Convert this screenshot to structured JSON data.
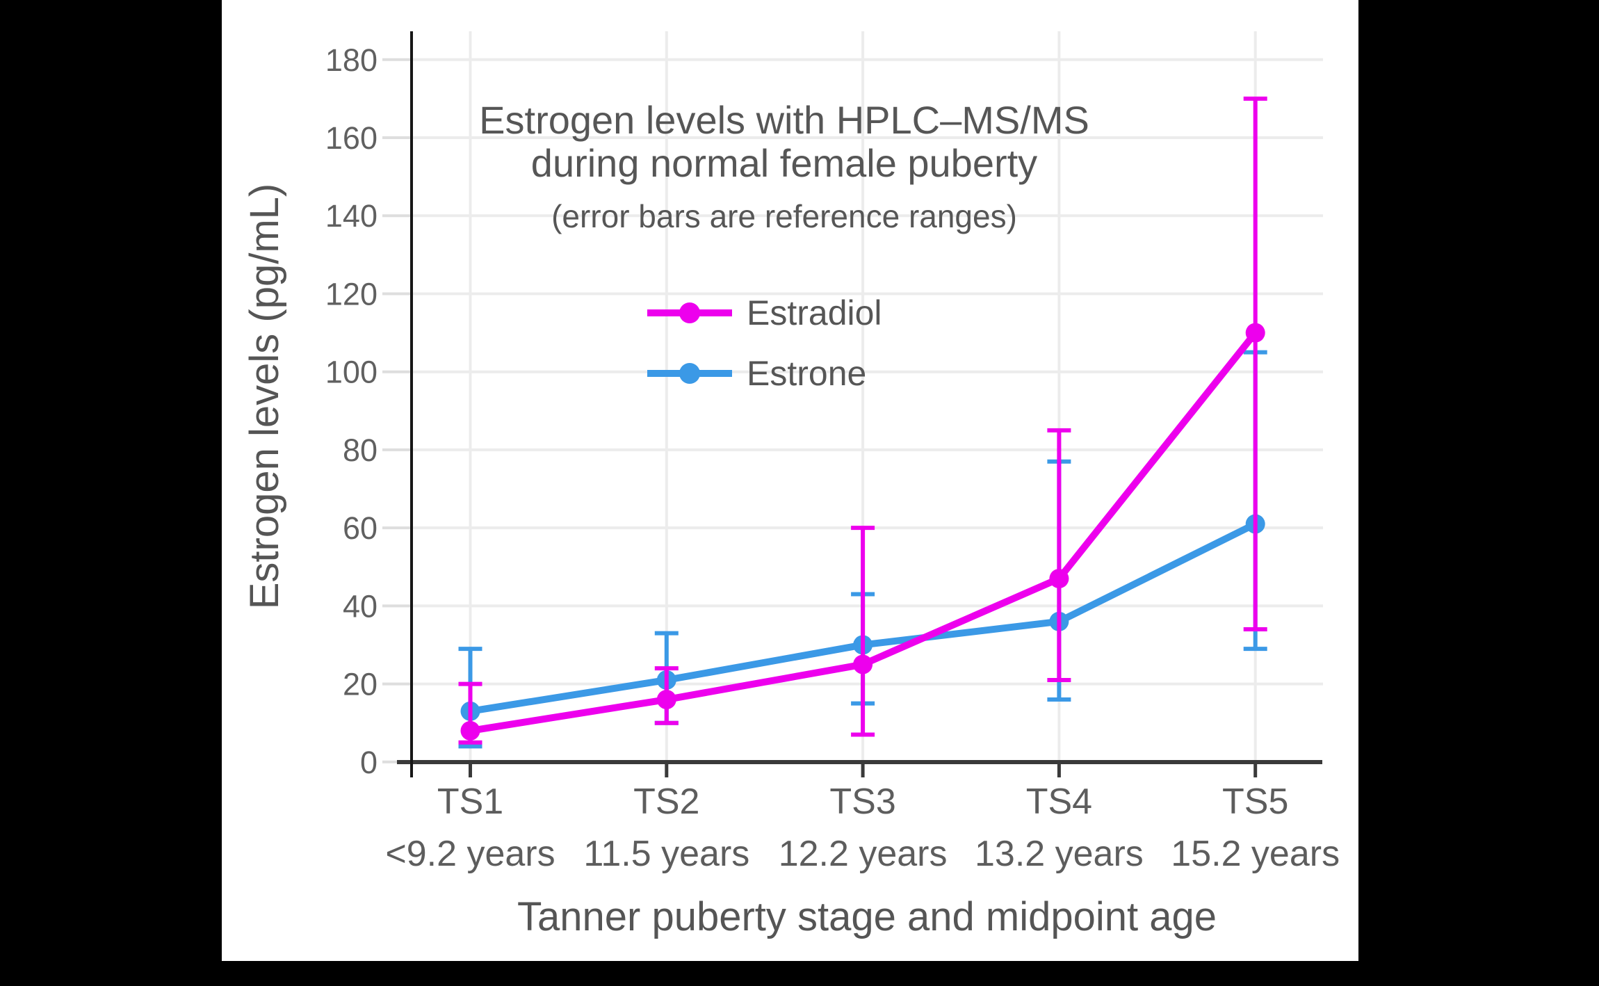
{
  "title": {
    "line1": "Estrogen levels with HPLC–MS/MS",
    "line2": "during normal female puberty",
    "subtitle": "(error bars are reference ranges)"
  },
  "legend": {
    "items": [
      {
        "label": "Estradiol",
        "color": "#ED00ED"
      },
      {
        "label": "Estrone",
        "color": "#3B99E6"
      }
    ]
  },
  "chart_data": {
    "type": "line",
    "title": "Estrogen levels with HPLC–MS/MS during normal female puberty",
    "subtitle": "(error bars are reference ranges)",
    "categories": [
      "TS1",
      "TS2",
      "TS3",
      "TS4",
      "TS5"
    ],
    "category_sublabels": [
      "<9.2 years",
      "11.5 years",
      "12.2 years",
      "13.2 years",
      "15.2 years"
    ],
    "xlabel": "Tanner puberty stage and midpoint age",
    "ylabel": "Estrogen levels (pg/mL)",
    "ylim": [
      0,
      180
    ],
    "ytick_step": 20,
    "grid": true,
    "legend_position": "inside-upper-left",
    "error_bars": "reference ranges",
    "series": [
      {
        "name": "Estrone",
        "color": "#3B99E6",
        "draw_order": 1,
        "values": [
          13,
          21,
          30,
          36,
          61
        ],
        "error_low": [
          4,
          10,
          15,
          16,
          29
        ],
        "error_high": [
          29,
          33,
          43,
          77,
          105
        ]
      },
      {
        "name": "Estradiol",
        "color": "#ED00ED",
        "draw_order": 2,
        "values": [
          8,
          16,
          25,
          47,
          110
        ],
        "error_low": [
          5,
          10,
          7,
          21,
          34
        ],
        "error_high": [
          20,
          24,
          60,
          85,
          170
        ]
      }
    ]
  }
}
